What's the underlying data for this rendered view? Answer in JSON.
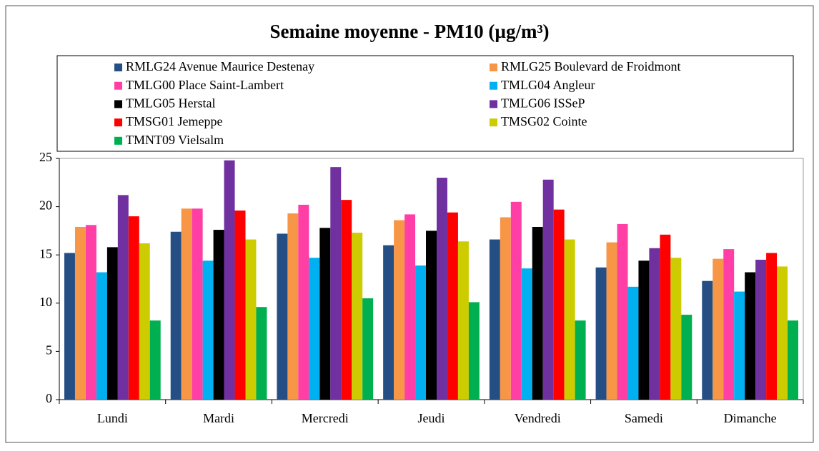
{
  "chart_data": {
    "type": "bar",
    "title": "Semaine moyenne - PM10 (µg/m³)",
    "categories": [
      "Lundi",
      "Mardi",
      "Mercredi",
      "Jeudi",
      "Vendredi",
      "Samedi",
      "Dimanche"
    ],
    "series": [
      {
        "name": "RMLG24 Avenue Maurice Destenay",
        "color": "#254f84",
        "values": [
          15.2,
          17.4,
          17.2,
          16.0,
          16.6,
          13.7,
          12.3
        ]
      },
      {
        "name": "RMLG25 Boulevard de Froidmont",
        "color": "#f79646",
        "values": [
          17.9,
          19.8,
          19.3,
          18.6,
          18.9,
          16.3,
          14.6
        ]
      },
      {
        "name": "TMLG00 Place Saint-Lambert",
        "color": "#ff3fa5",
        "values": [
          18.1,
          19.8,
          20.2,
          19.2,
          20.5,
          18.2,
          15.6
        ]
      },
      {
        "name": "TMLG04 Angleur",
        "color": "#00b0f0",
        "values": [
          13.2,
          14.4,
          14.7,
          13.9,
          13.6,
          11.7,
          11.2
        ]
      },
      {
        "name": "TMLG05 Herstal",
        "color": "#000000",
        "values": [
          15.8,
          17.6,
          17.8,
          17.5,
          17.9,
          14.4,
          13.2
        ]
      },
      {
        "name": "TMLG06 ISSeP",
        "color": "#7030a0",
        "values": [
          21.2,
          24.8,
          24.1,
          23.0,
          22.8,
          15.7,
          14.5
        ]
      },
      {
        "name": "TMSG01 Jemeppe",
        "color": "#ff0000",
        "values": [
          19.0,
          19.6,
          20.7,
          19.4,
          19.7,
          17.1,
          15.2
        ]
      },
      {
        "name": "TMSG02 Cointe",
        "color": "#cccc00",
        "values": [
          16.2,
          16.6,
          17.3,
          16.4,
          16.6,
          14.7,
          13.8
        ]
      },
      {
        "name": "TMNT09 Vielsalm",
        "color": "#00b050",
        "values": [
          8.2,
          9.6,
          10.5,
          10.1,
          8.2,
          8.8,
          8.2
        ]
      }
    ],
    "ylim": [
      0,
      25
    ],
    "yticks": [
      0,
      5,
      10,
      15,
      20,
      25
    ],
    "legend": "top"
  }
}
